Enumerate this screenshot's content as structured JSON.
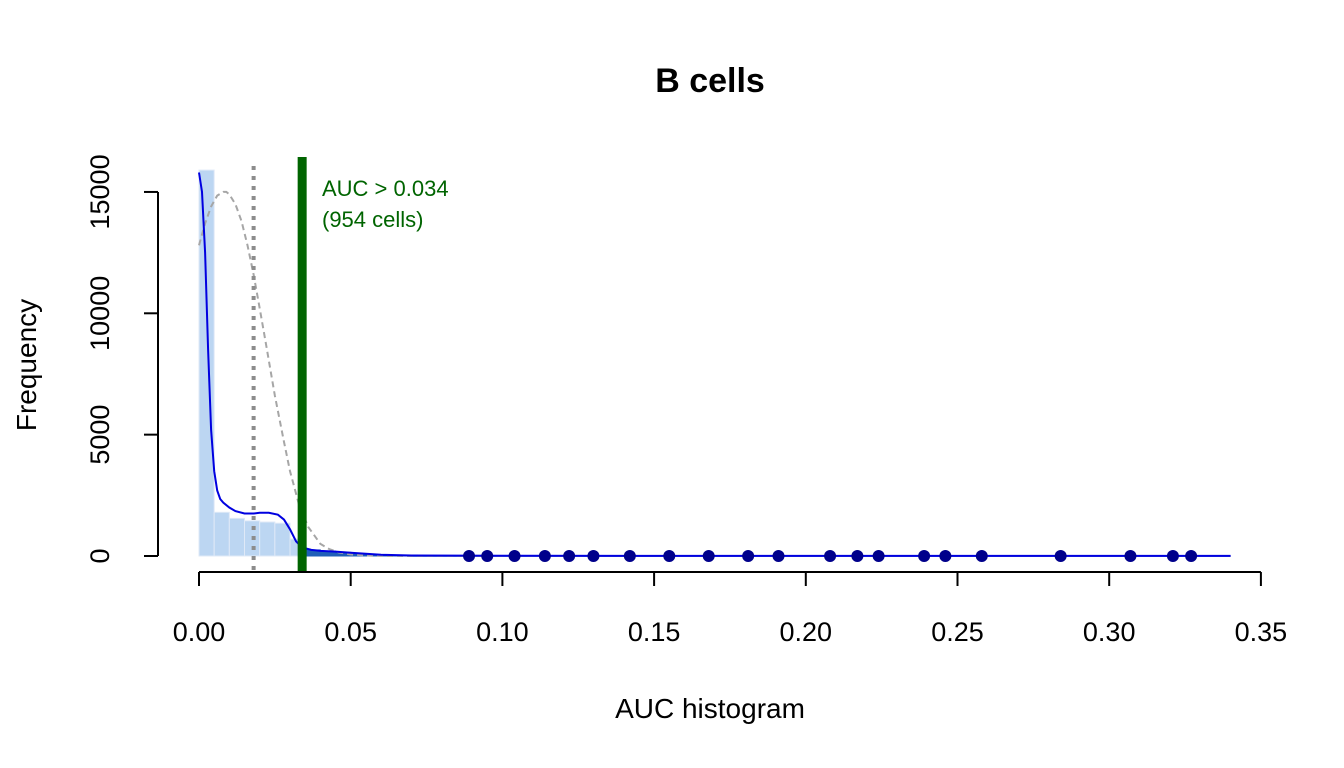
{
  "chart_data": {
    "type": "bar",
    "title": "B cells",
    "xlabel": "AUC histogram",
    "ylabel": "Frequency",
    "xlim": [
      0,
      0.34
    ],
    "ylim": [
      0,
      16000
    ],
    "x_ticks": [
      0.0,
      0.05,
      0.1,
      0.15,
      0.2,
      0.25,
      0.3,
      0.35
    ],
    "x_tick_labels": [
      "0.00",
      "0.05",
      "0.10",
      "0.15",
      "0.20",
      "0.25",
      "0.30",
      "0.35"
    ],
    "y_ticks": [
      0,
      5000,
      10000,
      15000
    ],
    "y_tick_labels": [
      "0",
      "5000",
      "10000",
      "15000"
    ],
    "grid": false,
    "histogram": {
      "bin_width": 0.005,
      "bin_starts": [
        0.0,
        0.005,
        0.01,
        0.015,
        0.02,
        0.025,
        0.03,
        0.035,
        0.04,
        0.045,
        0.05,
        0.055,
        0.06,
        0.065,
        0.07
      ],
      "counts": [
        15900,
        1800,
        1550,
        1450,
        1400,
        1350,
        700,
        250,
        200,
        150,
        80,
        50,
        40,
        30,
        20
      ],
      "selected_from": 0.034
    },
    "density_curve": {
      "x": [
        0.0,
        0.001,
        0.002,
        0.003,
        0.004,
        0.005,
        0.006,
        0.007,
        0.008,
        0.01,
        0.012,
        0.015,
        0.018,
        0.02,
        0.023,
        0.026,
        0.028,
        0.03,
        0.032,
        0.034,
        0.037,
        0.04,
        0.045,
        0.05,
        0.06,
        0.07,
        0.1,
        0.15,
        0.2,
        0.25,
        0.3,
        0.34
      ],
      "y": [
        15800,
        15000,
        12500,
        8500,
        5200,
        3500,
        2700,
        2350,
        2200,
        2000,
        1850,
        1750,
        1750,
        1780,
        1780,
        1700,
        1500,
        1100,
        600,
        350,
        250,
        210,
        180,
        130,
        50,
        20,
        10,
        5,
        5,
        5,
        5,
        5
      ]
    },
    "normal_fit": {
      "x": [
        0.0,
        0.002,
        0.004,
        0.006,
        0.008,
        0.009,
        0.01,
        0.012,
        0.014,
        0.016,
        0.018,
        0.02,
        0.022,
        0.025,
        0.028,
        0.03,
        0.033,
        0.036,
        0.04,
        0.043,
        0.046,
        0.05,
        0.055,
        0.06,
        0.065,
        0.07,
        0.1,
        0.2,
        0.34
      ],
      "y": [
        12800,
        13700,
        14400,
        14850,
        15000,
        15000,
        14900,
        14500,
        13800,
        12800,
        11600,
        10200,
        8800,
        6600,
        4700,
        3500,
        2100,
        1200,
        500,
        280,
        150,
        60,
        20,
        5,
        2,
        0,
        0,
        0,
        0
      ]
    },
    "vertical_lines": [
      {
        "name": "threshold-dotted",
        "x": 0.018,
        "style": "dotted",
        "color": "#8c8c8c"
      },
      {
        "name": "selected-threshold",
        "x": 0.034,
        "style": "solid",
        "color": "#006400"
      }
    ],
    "points_x": [
      0.089,
      0.095,
      0.104,
      0.114,
      0.122,
      0.13,
      0.142,
      0.155,
      0.168,
      0.181,
      0.191,
      0.208,
      0.217,
      0.224,
      0.239,
      0.246,
      0.258,
      0.284,
      0.307,
      0.321,
      0.327
    ],
    "annotation": {
      "line1": "AUC > 0.034",
      "line2": "(954 cells)",
      "color": "#006400"
    },
    "colors": {
      "bar": "#bcd6f2",
      "bar_edge": "#dfe9f7",
      "bar_selected": "#1f5fb8",
      "density": "#0000e0",
      "normal_fit": "#a6a6a6",
      "points": "#00008b",
      "point_line": "#6fa0e0"
    }
  }
}
